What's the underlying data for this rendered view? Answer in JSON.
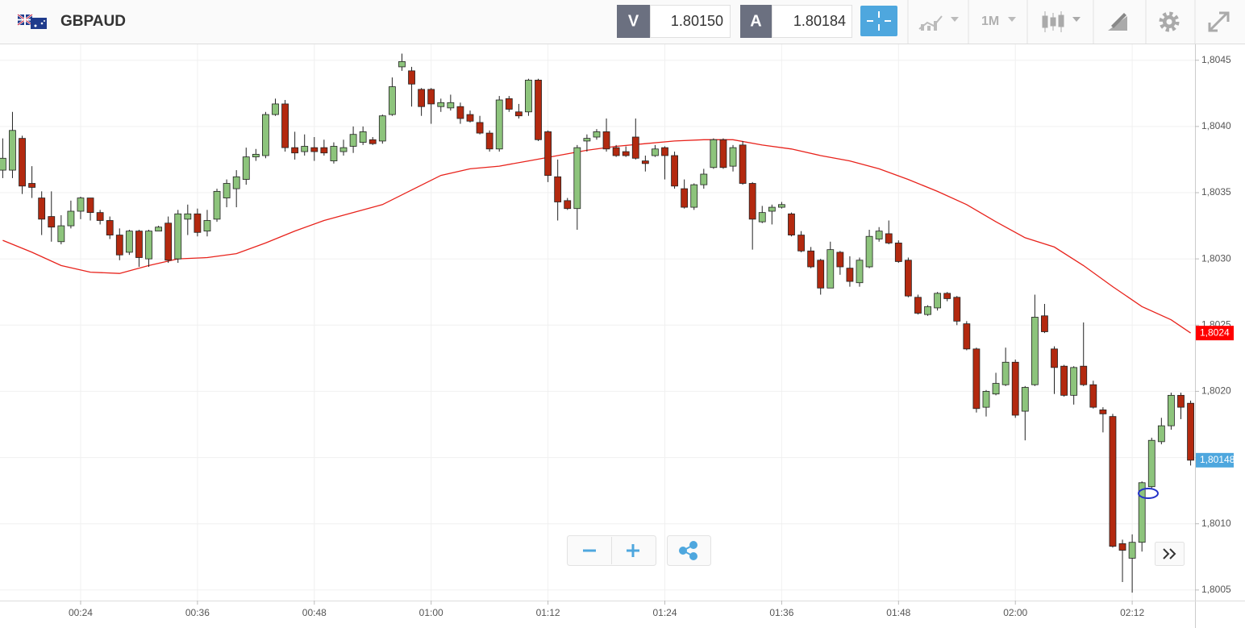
{
  "toolbar": {
    "symbol": "GBPAUD",
    "bid_label": "V",
    "bid": "1.80150",
    "ask_label": "A",
    "ask": "1.80184",
    "timeframe": "1M"
  },
  "chart_data": {
    "type": "candlestick",
    "grid": true,
    "up_color": "#8dc47c",
    "down_color": "#b3290f",
    "xlim": [
      15.72,
      138.45
    ],
    "xticks": [
      {
        "value": 24,
        "label": "00:24"
      },
      {
        "value": 36,
        "label": "00:36"
      },
      {
        "value": 48,
        "label": "00:48"
      },
      {
        "value": 60,
        "label": "01:00"
      },
      {
        "value": 72,
        "label": "01:12"
      },
      {
        "value": 84,
        "label": "01:24"
      },
      {
        "value": 96,
        "label": "01:36"
      },
      {
        "value": 108,
        "label": "01:48"
      },
      {
        "value": 120,
        "label": "02:00"
      },
      {
        "value": 132,
        "label": "02:12"
      }
    ],
    "ylim": [
      1.80042,
      1.80462
    ],
    "yticks": [
      {
        "value": 1.8005,
        "label": "1,8005"
      },
      {
        "value": 1.801,
        "label": "1,8010"
      },
      {
        "value": 1.8015,
        "label": "1,8015"
      },
      {
        "value": 1.802,
        "label": "1,8020"
      },
      {
        "value": 1.8025,
        "label": "1,8025"
      },
      {
        "value": 1.803,
        "label": "1,8030"
      },
      {
        "value": 1.8035,
        "label": "1,8035"
      },
      {
        "value": 1.804,
        "label": "1,8040"
      },
      {
        "value": 1.8045,
        "label": "1,8045"
      }
    ],
    "x": [
      16,
      17,
      18,
      19,
      20,
      21,
      22,
      23,
      24,
      25,
      26,
      27,
      28,
      29,
      30,
      31,
      32,
      33,
      34,
      35,
      36,
      37,
      38,
      39,
      40,
      41,
      42,
      43,
      44,
      45,
      46,
      47,
      48,
      49,
      50,
      51,
      52,
      53,
      54,
      55,
      56,
      57,
      58,
      59,
      60,
      61,
      62,
      63,
      64,
      65,
      66,
      67,
      68,
      69,
      70,
      71,
      72,
      73,
      74,
      75,
      76,
      77,
      78,
      79,
      80,
      81,
      82,
      83,
      84,
      85,
      86,
      87,
      88,
      89,
      90,
      91,
      92,
      93,
      94,
      95,
      96,
      97,
      98,
      99,
      100,
      101,
      102,
      103,
      104,
      105,
      106,
      107,
      108,
      109,
      110,
      111,
      112,
      113,
      114,
      115,
      116,
      117,
      118,
      119,
      120,
      121,
      122,
      123,
      124,
      125,
      126,
      127,
      128,
      129,
      130,
      131,
      132,
      133,
      134,
      135,
      136,
      137,
      138
    ],
    "open": [
      1.80367,
      1.80367,
      1.80391,
      1.80357,
      1.80346,
      1.80332,
      1.80313,
      1.80325,
      1.80336,
      1.80346,
      1.80335,
      1.80329,
      1.80318,
      1.80305,
      1.80321,
      1.803,
      1.80321,
      1.80327,
      1.803,
      1.8033,
      1.80334,
      1.80321,
      1.8033,
      1.80346,
      1.80353,
      1.8036,
      1.80377,
      1.80378,
      1.80409,
      1.80417,
      1.80384,
      1.80381,
      1.80384,
      1.80384,
      1.80374,
      1.80381,
      1.80385,
      1.80388,
      1.8039,
      1.80389,
      1.80409,
      1.80445,
      1.80442,
      1.80428,
      1.80428,
      1.80415,
      1.80414,
      1.80415,
      1.80409,
      1.80403,
      1.80395,
      1.80383,
      1.80421,
      1.80411,
      1.80411,
      1.80435,
      1.80396,
      1.80362,
      1.80344,
      1.80338,
      1.80389,
      1.80392,
      1.80396,
      1.80384,
      1.80381,
      1.80392,
      1.80374,
      1.80378,
      1.80384,
      1.80378,
      1.80353,
      1.80339,
      1.80356,
      1.80369,
      1.8039,
      1.8037,
      1.80386,
      1.80357,
      1.80328,
      1.80336,
      1.80339,
      1.80334,
      1.80318,
      1.80306,
      1.80299,
      1.80278,
      1.80305,
      1.80293,
      1.80282,
      1.80294,
      1.80315,
      1.80319,
      1.80312,
      1.80299,
      1.80271,
      1.80258,
      1.80263,
      1.80274,
      1.80271,
      1.80251,
      1.80232,
      1.80188,
      1.80198,
      1.80205,
      1.80222,
      1.80185,
      1.80205,
      1.80257,
      1.80232,
      1.80219,
      1.80197,
      1.80219,
      1.80205,
      1.80186,
      1.80181,
      1.80085,
      1.80074,
      1.80086,
      1.80128,
      1.80162,
      1.80174,
      1.80197,
      1.80191
    ],
    "high": [
      1.80391,
      1.80411,
      1.80393,
      1.8037,
      1.80351,
      1.80351,
      1.80333,
      1.80344,
      1.80347,
      1.80346,
      1.80337,
      1.80332,
      1.80323,
      1.80322,
      1.80322,
      1.80322,
      1.80325,
      1.80332,
      1.80337,
      1.80341,
      1.80338,
      1.80337,
      1.80353,
      1.8036,
      1.80367,
      1.80384,
      1.80383,
      1.80411,
      1.80421,
      1.8042,
      1.80396,
      1.80394,
      1.80392,
      1.8039,
      1.80388,
      1.8039,
      1.804,
      1.804,
      1.80392,
      1.80409,
      1.80437,
      1.80455,
      1.80445,
      1.80429,
      1.80429,
      1.80421,
      1.80424,
      1.80418,
      1.80412,
      1.80408,
      1.80397,
      1.80423,
      1.80423,
      1.80417,
      1.80436,
      1.80436,
      1.80397,
      1.80375,
      1.80346,
      1.80386,
      1.80394,
      1.80398,
      1.80406,
      1.80386,
      1.80385,
      1.80406,
      1.80378,
      1.80386,
      1.80385,
      1.80381,
      1.8036,
      1.80357,
      1.80368,
      1.80391,
      1.80391,
      1.80386,
      1.80389,
      1.80358,
      1.8034,
      1.80341,
      1.80343,
      1.80335,
      1.80321,
      1.80309,
      1.803,
      1.80313,
      1.80306,
      1.80302,
      1.80301,
      1.80322,
      1.80324,
      1.80329,
      1.80314,
      1.80301,
      1.80273,
      1.80265,
      1.80275,
      1.80275,
      1.80272,
      1.80253,
      1.80233,
      1.80201,
      1.80214,
      1.80233,
      1.80224,
      1.80204,
      1.80273,
      1.80266,
      1.80234,
      1.8022,
      1.80219,
      1.80252,
      1.80208,
      1.80188,
      1.80183,
      1.80088,
      1.80092,
      1.80132,
      1.80165,
      1.8018,
      1.80199,
      1.80199,
      1.80193
    ],
    "low": [
      1.80361,
      1.80361,
      1.80349,
      1.80346,
      1.80318,
      1.80313,
      1.80311,
      1.80323,
      1.8033,
      1.80329,
      1.80326,
      1.80315,
      1.80299,
      1.80303,
      1.80294,
      1.80294,
      1.80321,
      1.80297,
      1.80297,
      1.80318,
      1.80317,
      1.80317,
      1.80328,
      1.80339,
      1.80339,
      1.80356,
      1.80374,
      1.80376,
      1.80408,
      1.80381,
      1.80375,
      1.80378,
      1.80374,
      1.80378,
      1.80372,
      1.80378,
      1.8038,
      1.80386,
      1.80386,
      1.80387,
      1.80408,
      1.80442,
      1.80415,
      1.80408,
      1.80402,
      1.80411,
      1.80412,
      1.80402,
      1.80403,
      1.80394,
      1.80381,
      1.80381,
      1.80411,
      1.80406,
      1.80408,
      1.80389,
      1.80358,
      1.80329,
      1.80337,
      1.80322,
      1.80381,
      1.8039,
      1.80381,
      1.80377,
      1.80377,
      1.80375,
      1.80366,
      1.80377,
      1.8036,
      1.80353,
      1.80338,
      1.80337,
      1.80353,
      1.80368,
      1.80368,
      1.80366,
      1.80356,
      1.80307,
      1.80327,
      1.80326,
      1.80338,
      1.80317,
      1.80305,
      1.80293,
      1.80273,
      1.80278,
      1.80288,
      1.80279,
      1.80279,
      1.80293,
      1.80313,
      1.80311,
      1.80297,
      1.80271,
      1.80258,
      1.80257,
      1.80261,
      1.80268,
      1.8025,
      1.80231,
      1.80184,
      1.80181,
      1.80197,
      1.80204,
      1.8018,
      1.80163,
      1.80204,
      1.80244,
      1.80198,
      1.80196,
      1.8019,
      1.80204,
      1.80187,
      1.80169,
      1.80082,
      1.80056,
      1.80048,
      1.80079,
      1.80126,
      1.8016,
      1.80171,
      1.80179,
      1.80144
    ],
    "close": [
      1.80376,
      1.80397,
      1.80355,
      1.80354,
      1.8033,
      1.80324,
      1.80325,
      1.80336,
      1.80346,
      1.80335,
      1.80329,
      1.80318,
      1.80303,
      1.80321,
      1.80301,
      1.80321,
      1.80324,
      1.80299,
      1.80334,
      1.80334,
      1.8032,
      1.80329,
      1.80351,
      1.80357,
      1.80362,
      1.80377,
      1.80379,
      1.80409,
      1.80417,
      1.80384,
      1.8038,
      1.80385,
      1.80381,
      1.8038,
      1.80385,
      1.80384,
      1.80394,
      1.80396,
      1.80387,
      1.80408,
      1.8043,
      1.80449,
      1.80432,
      1.80415,
      1.80417,
      1.80418,
      1.80418,
      1.80406,
      1.80404,
      1.80395,
      1.80383,
      1.8042,
      1.80413,
      1.80408,
      1.80435,
      1.8039,
      1.80363,
      1.80343,
      1.80338,
      1.80384,
      1.80391,
      1.80396,
      1.80383,
      1.80378,
      1.80378,
      1.80376,
      1.80372,
      1.80383,
      1.80378,
      1.80355,
      1.80339,
      1.80356,
      1.80364,
      1.8039,
      1.80369,
      1.80384,
      1.80357,
      1.8033,
      1.80335,
      1.80339,
      1.80341,
      1.80318,
      1.80306,
      1.80294,
      1.80278,
      1.80307,
      1.80294,
      1.80283,
      1.80299,
      1.80317,
      1.80321,
      1.80312,
      1.80298,
      1.80272,
      1.80259,
      1.80264,
      1.80274,
      1.8027,
      1.80253,
      1.80232,
      1.80187,
      1.802,
      1.80206,
      1.80222,
      1.80182,
      1.80203,
      1.80256,
      1.80245,
      1.80218,
      1.80197,
      1.80218,
      1.80205,
      1.80188,
      1.80183,
      1.80083,
      1.8008,
      1.80086,
      1.80131,
      1.80163,
      1.80174,
      1.80197,
      1.80188,
      1.80148
    ],
    "moving_average": {
      "color": "#e8231c",
      "x": [
        16,
        19,
        22,
        25,
        28,
        31,
        34,
        37,
        40,
        43,
        46,
        49,
        52,
        55,
        58,
        61,
        64,
        67,
        70,
        73,
        76,
        79,
        82,
        85,
        88,
        91,
        94,
        97,
        100,
        103,
        106,
        109,
        112,
        115,
        118,
        121,
        124,
        127,
        130,
        133,
        136,
        138
      ],
      "values": [
        1.80314,
        1.80305,
        1.80295,
        1.8029,
        1.80289,
        1.80295,
        1.803,
        1.80301,
        1.80304,
        1.80312,
        1.80321,
        1.80329,
        1.80335,
        1.80341,
        1.80352,
        1.80363,
        1.80368,
        1.8037,
        1.80374,
        1.80378,
        1.80382,
        1.80385,
        1.80387,
        1.80389,
        1.8039,
        1.8039,
        1.80386,
        1.80383,
        1.80378,
        1.80374,
        1.80368,
        1.8036,
        1.80351,
        1.80341,
        1.80328,
        1.80316,
        1.80309,
        1.80295,
        1.80279,
        1.80264,
        1.80254,
        1.80244
      ]
    },
    "price_labels": [
      {
        "value": 1.80244,
        "label": "1,8024",
        "color": "#ff0000"
      },
      {
        "value": 1.80148,
        "label": "1,80148",
        "color": "#4ea7de"
      }
    ]
  }
}
